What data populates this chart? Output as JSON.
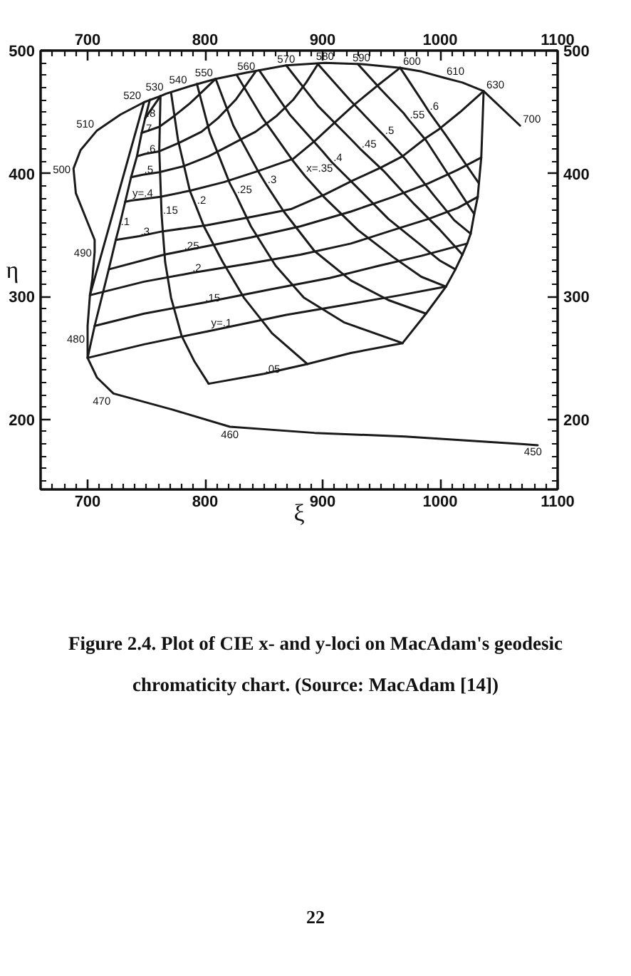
{
  "chart_data": {
    "type": "line",
    "title": "Figure 2.4. Plot of CIE x- and y-loci on MacAdam's geodesic chromaticity chart. (Source: MacAdam [14])",
    "xlabel": "ξ",
    "ylabel": "η",
    "xlim": [
      660,
      1100
    ],
    "ylim": [
      143,
      500
    ],
    "x2lim": [
      660,
      1100
    ],
    "y2lim": [
      143,
      500
    ],
    "xticks": [
      {
        "value": 670,
        "label": null
      },
      {
        "value": 680,
        "label": null
      },
      {
        "value": 690,
        "label": null
      },
      700,
      {
        "value": 710,
        "label": null
      },
      {
        "value": 720,
        "label": null
      },
      {
        "value": 730,
        "label": null
      },
      {
        "value": 740,
        "label": null
      },
      {
        "value": 750,
        "label": null
      },
      {
        "value": 760,
        "label": null
      },
      {
        "value": 770,
        "label": null
      },
      {
        "value": 780,
        "label": null
      },
      {
        "value": 790,
        "label": null
      },
      800,
      {
        "value": 810,
        "label": null
      },
      {
        "value": 820,
        "label": null
      },
      {
        "value": 830,
        "label": null
      },
      {
        "value": 840,
        "label": null
      },
      {
        "value": 850,
        "label": null
      },
      {
        "value": 860,
        "label": null
      },
      {
        "value": 870,
        "label": null
      },
      {
        "value": 880,
        "label": null
      },
      {
        "value": 890,
        "label": null
      },
      900,
      {
        "value": 910,
        "label": null
      },
      {
        "value": 920,
        "label": null
      },
      {
        "value": 930,
        "label": null
      },
      {
        "value": 940,
        "label": null
      },
      {
        "value": 950,
        "label": null
      },
      {
        "value": 960,
        "label": null
      },
      {
        "value": 970,
        "label": null
      },
      {
        "value": 980,
        "label": null
      },
      {
        "value": 990,
        "label": null
      },
      1000,
      {
        "value": 1010,
        "label": null
      },
      {
        "value": 1020,
        "label": null
      },
      {
        "value": 1030,
        "label": null
      },
      {
        "value": 1040,
        "label": null
      },
      {
        "value": 1050,
        "label": null
      },
      {
        "value": 1060,
        "label": null
      },
      {
        "value": 1070,
        "label": null
      },
      {
        "value": 1080,
        "label": null
      },
      {
        "value": 1090,
        "label": null
      },
      1100
    ],
    "x2ticks": [
      {
        "value": 670,
        "label": null
      },
      {
        "value": 680,
        "label": null
      },
      {
        "value": 690,
        "label": null
      },
      700,
      {
        "value": 710,
        "label": null
      },
      {
        "value": 720,
        "label": null
      },
      {
        "value": 730,
        "label": null
      },
      {
        "value": 740,
        "label": null
      },
      {
        "value": 750,
        "label": null
      },
      {
        "value": 760,
        "label": null
      },
      {
        "value": 770,
        "label": null
      },
      {
        "value": 780,
        "label": null
      },
      {
        "value": 790,
        "label": null
      },
      800,
      {
        "value": 810,
        "label": null
      },
      {
        "value": 820,
        "label": null
      },
      {
        "value": 830,
        "label": null
      },
      {
        "value": 840,
        "label": null
      },
      {
        "value": 850,
        "label": null
      },
      {
        "value": 860,
        "label": null
      },
      {
        "value": 870,
        "label": null
      },
      {
        "value": 880,
        "label": null
      },
      {
        "value": 890,
        "label": null
      },
      900,
      {
        "value": 910,
        "label": null
      },
      {
        "value": 920,
        "label": null
      },
      {
        "value": 930,
        "label": null
      },
      {
        "value": 940,
        "label": null
      },
      {
        "value": 950,
        "label": null
      },
      {
        "value": 960,
        "label": null
      },
      {
        "value": 970,
        "label": null
      },
      {
        "value": 980,
        "label": null
      },
      {
        "value": 990,
        "label": null
      },
      1000,
      {
        "value": 1010,
        "label": null
      },
      {
        "value": 1020,
        "label": null
      },
      {
        "value": 1030,
        "label": null
      },
      {
        "value": 1040,
        "label": null
      },
      {
        "value": 1050,
        "label": null
      },
      {
        "value": 1060,
        "label": null
      },
      {
        "value": 1070,
        "label": null
      },
      {
        "value": 1080,
        "label": null
      },
      {
        "value": 1090,
        "label": null
      },
      1100
    ],
    "yticks": [
      {
        "value": 150,
        "label": null
      },
      {
        "value": 160,
        "label": null
      },
      {
        "value": 170,
        "label": null
      },
      {
        "value": 180,
        "label": null
      },
      {
        "value": 190,
        "label": null
      },
      200,
      {
        "value": 210,
        "label": null
      },
      {
        "value": 220,
        "label": null
      },
      {
        "value": 230,
        "label": null
      },
      {
        "value": 240,
        "label": null
      },
      {
        "value": 250,
        "label": null
      },
      {
        "value": 260,
        "label": null
      },
      {
        "value": 270,
        "label": null
      },
      {
        "value": 280,
        "label": null
      },
      {
        "value": 290,
        "label": null
      },
      300,
      {
        "value": 310,
        "label": null
      },
      {
        "value": 320,
        "label": null
      },
      {
        "value": 330,
        "label": null
      },
      {
        "value": 340,
        "label": null
      },
      {
        "value": 350,
        "label": null
      },
      {
        "value": 360,
        "label": null
      },
      {
        "value": 370,
        "label": null
      },
      {
        "value": 380,
        "label": null
      },
      {
        "value": 390,
        "label": null
      },
      400,
      {
        "value": 410,
        "label": null
      },
      {
        "value": 420,
        "label": null
      },
      {
        "value": 430,
        "label": null
      },
      {
        "value": 440,
        "label": null
      },
      {
        "value": 450,
        "label": null
      },
      {
        "value": 460,
        "label": null
      },
      {
        "value": 470,
        "label": null
      },
      {
        "value": 480,
        "label": null
      },
      {
        "value": 490,
        "label": null
      },
      500
    ],
    "y2ticks": [
      {
        "value": 150,
        "label": null
      },
      {
        "value": 160,
        "label": null
      },
      {
        "value": 170,
        "label": null
      },
      {
        "value": 180,
        "label": null
      },
      {
        "value": 190,
        "label": null
      },
      200,
      {
        "value": 210,
        "label": null
      },
      {
        "value": 220,
        "label": null
      },
      {
        "value": 230,
        "label": null
      },
      {
        "value": 240,
        "label": null
      },
      {
        "value": 250,
        "label": null
      },
      {
        "value": 260,
        "label": null
      },
      {
        "value": 270,
        "label": null
      },
      {
        "value": 280,
        "label": null
      },
      {
        "value": 290,
        "label": null
      },
      300,
      {
        "value": 310,
        "label": null
      },
      {
        "value": 320,
        "label": null
      },
      {
        "value": 330,
        "label": null
      },
      {
        "value": 340,
        "label": null
      },
      {
        "value": 350,
        "label": null
      },
      {
        "value": 360,
        "label": null
      },
      {
        "value": 370,
        "label": null
      },
      {
        "value": 380,
        "label": null
      },
      {
        "value": 390,
        "label": null
      },
      400,
      {
        "value": 410,
        "label": null
      },
      {
        "value": 420,
        "label": null
      },
      {
        "value": 430,
        "label": null
      },
      {
        "value": 440,
        "label": null
      },
      {
        "value": 450,
        "label": null
      },
      {
        "value": 460,
        "label": null
      },
      {
        "value": 470,
        "label": null
      },
      {
        "value": 480,
        "label": null
      },
      {
        "value": 490,
        "label": null
      },
      500
    ],
    "series": [
      {
        "color": "#1a1a1a",
        "x": [
          1068,
          1037,
          1019,
          1003,
          984,
          966,
          933,
          902,
          869,
          835,
          809,
          787,
          767,
          762,
          748,
          728,
          708,
          694,
          688,
          690,
          698,
          706,
          706,
          704,
          702,
          700,
          700,
          700,
          708,
          722,
          772,
          821,
          893,
          970,
          1069,
          1083
        ],
        "values": [
          439,
          467,
          474,
          478,
          483,
          486,
          489,
          490,
          488,
          482,
          477,
          471,
          465,
          463,
          458,
          448,
          435,
          419,
          404,
          384,
          365,
          346,
          336,
          314,
          301,
          276,
          266,
          250,
          234,
          221,
          208,
          194,
          189,
          186,
          180,
          179
        ]
      },
      {
        "color": "#1a1a1a",
        "x": [
          748,
          702
        ],
        "values": [
          458,
          301
        ]
      },
      {
        "color": "#1a1a1a",
        "x": [
          753,
          749,
          746,
          742,
          737,
          732,
          727,
          724,
          718,
          706,
          700
        ],
        "values": [
          460,
          445,
          433,
          414,
          397,
          377,
          357,
          346,
          322,
          276,
          250
        ]
      },
      {
        "color": "#1a1a1a",
        "x": [
          1037,
          1036,
          1035,
          1033,
          1032,
          1029,
          1026,
          1023,
          1019,
          1013,
          1005,
          988,
          968
        ],
        "values": [
          467,
          439,
          413,
          392,
          381,
          367,
          351,
          343,
          334,
          322,
          308,
          286,
          262
        ]
      },
      {
        "color": "#1a1a1a",
        "x": [
          762,
          761,
          763,
          764,
          766,
          771,
          780,
          791,
          803
        ],
        "values": [
          463,
          419,
          366,
          353,
          328,
          299,
          268,
          247,
          229
        ]
      },
      {
        "color": "#1a1a1a",
        "x": [
          771,
          777,
          787,
          792,
          799,
          815,
          833,
          857,
          887
        ],
        "values": [
          466,
          427,
          386,
          374,
          357,
          328,
          299,
          270,
          245
        ]
      },
      {
        "color": "#1a1a1a",
        "x": [
          793,
          804,
          821,
          826,
          839,
          860,
          884,
          918,
          968
        ],
        "values": [
          473,
          433,
          392,
          383,
          357,
          325,
          299,
          279,
          262
        ]
      },
      {
        "color": "#1a1a1a",
        "x": [
          809,
          824,
          845,
          852,
          867,
          893,
          924,
          956,
          988
        ],
        "values": [
          477,
          439,
          402,
          391,
          369,
          337,
          313,
          297,
          286
        ]
      },
      {
        "color": "#1a1a1a",
        "x": [
          827,
          849,
          875,
          885,
          901,
          930,
          960,
          984,
          1005
        ],
        "values": [
          480,
          445,
          410,
          398,
          381,
          354,
          332,
          316,
          308
        ]
      },
      {
        "color": "#1a1a1a",
        "x": [
          846,
          872,
          900,
          908,
          927,
          956,
          982,
          1000,
          1013
        ],
        "values": [
          484,
          448,
          418,
          409,
          391,
          363,
          343,
          329,
          322
        ]
      },
      {
        "color": "#1a1a1a",
        "x": [
          869,
          896,
          925,
          932,
          952,
          978,
          1000,
          1019
        ],
        "values": [
          488,
          455,
          427,
          420,
          402,
          375,
          354,
          334
        ]
      },
      {
        "color": "#1a1a1a",
        "x": [
          896,
          923,
          947,
          952,
          971,
          994,
          1012,
          1026
        ],
        "values": [
          489,
          460,
          436,
          431,
          411,
          383,
          362,
          351
        ]
      },
      {
        "color": "#1a1a1a",
        "x": [
          930,
          949,
          969,
          973,
          988,
          1007,
          1029
        ],
        "values": [
          489,
          469,
          449,
          444,
          427,
          399,
          367
        ]
      },
      {
        "color": "#1a1a1a",
        "x": [
          966,
          986,
          990,
          1005,
          1033
        ],
        "values": [
          486,
          457,
          451,
          431,
          392
        ]
      },
      {
        "color": "#1a1a1a",
        "x": [
          749,
          762
        ],
        "values": [
          445,
          463
        ]
      },
      {
        "color": "#1a1a1a",
        "x": [
          746,
          761,
          774,
          787,
          797,
          809
        ],
        "values": [
          433,
          438,
          447,
          457,
          466,
          477
        ]
      },
      {
        "color": "#1a1a1a",
        "x": [
          742,
          749,
          761,
          778,
          797,
          811,
          826,
          843
        ],
        "values": [
          414,
          416,
          418,
          425,
          434,
          445,
          460,
          483
        ]
      },
      {
        "color": "#1a1a1a",
        "x": [
          737,
          747,
          761,
          782,
          803,
          823,
          843,
          861,
          875,
          886,
          896
        ],
        "values": [
          397,
          399,
          401,
          406,
          414,
          424,
          434,
          447,
          460,
          474,
          489
        ]
      },
      {
        "color": "#1a1a1a",
        "x": [
          732,
          737,
          762,
          787,
          816,
          845,
          875,
          894,
          912,
          927,
          946,
          966
        ],
        "values": [
          377,
          378,
          381,
          386,
          393,
          402,
          412,
          427,
          443,
          456,
          471,
          486
        ]
      },
      {
        "color": "#1a1a1a",
        "x": [
          724,
          744,
          764,
          802,
          841,
          873,
          902,
          925,
          950,
          968,
          988,
          999,
          1017,
          1037
        ],
        "values": [
          346,
          349,
          353,
          358,
          365,
          371,
          383,
          394,
          405,
          414,
          429,
          436,
          450,
          467
        ]
      },
      {
        "color": "#1a1a1a",
        "x": [
          718,
          765,
          781,
          797,
          839,
          881,
          924,
          960,
          990,
          1015,
          1035
        ],
        "values": [
          322,
          334,
          337,
          340,
          348,
          357,
          369,
          381,
          392,
          403,
          413
        ]
      },
      {
        "color": "#1a1a1a",
        "x": [
          702,
          748,
          788,
          839,
          881,
          924,
          960,
          990,
          1015,
          1032
        ],
        "values": [
          301,
          312,
          319,
          327,
          334,
          343,
          354,
          363,
          372,
          381
        ]
      },
      {
        "color": "#1a1a1a",
        "x": [
          706,
          748,
          799,
          857,
          906,
          948,
          984,
          1023
        ],
        "values": [
          276,
          286,
          295,
          306,
          315,
          325,
          333,
          343
        ]
      },
      {
        "color": "#1a1a1a",
        "x": [
          700,
          748,
          804,
          869,
          918,
          966,
          1005
        ],
        "values": [
          250,
          261,
          272,
          285,
          293,
          301,
          308
        ]
      },
      {
        "color": "#1a1a1a",
        "x": [
          803,
          850,
          887,
          924,
          968
        ],
        "values": [
          229,
          237,
          245,
          254,
          262
        ]
      }
    ],
    "annotations": [
      {
        "text": "700",
        "x": 1068,
        "y": 439
      },
      {
        "text": "630",
        "x": 1037,
        "y": 467
      },
      {
        "text": "610",
        "x": 1003,
        "y": 478
      },
      {
        "text": "600",
        "x": 966,
        "y": 486
      },
      {
        "text": "590",
        "x": 933,
        "y": 489
      },
      {
        "text": "580",
        "x": 902,
        "y": 490
      },
      {
        "text": "570",
        "x": 869,
        "y": 488
      },
      {
        "text": "560",
        "x": 835,
        "y": 482
      },
      {
        "text": "550",
        "x": 809,
        "y": 477
      },
      {
        "text": "540",
        "x": 787,
        "y": 471
      },
      {
        "text": "530",
        "x": 767,
        "y": 465
      },
      {
        "text": "520",
        "x": 748,
        "y": 458
      },
      {
        "text": "510",
        "x": 708,
        "y": 435
      },
      {
        "text": "500",
        "x": 688,
        "y": 404
      },
      {
        "text": "490",
        "x": 706,
        "y": 336
      },
      {
        "text": "480",
        "x": 700,
        "y": 266
      },
      {
        "text": "470",
        "x": 722,
        "y": 221
      },
      {
        "text": "460",
        "x": 821,
        "y": 194
      },
      {
        "text": "450",
        "x": 1069,
        "y": 180
      },
      {
        "text": ".1",
        "x": 727,
        "y": 357
      },
      {
        "text": ".15",
        "x": 763,
        "y": 366
      },
      {
        "text": ".2",
        "x": 792,
        "y": 374
      },
      {
        "text": ".25",
        "x": 826,
        "y": 383
      },
      {
        "text": ".3",
        "x": 852,
        "y": 391
      },
      {
        "text": "x=.35",
        "x": 885,
        "y": 398
      },
      {
        "text": ".4",
        "x": 908,
        "y": 409
      },
      {
        "text": ".45",
        "x": 932,
        "y": 420
      },
      {
        "text": ".5",
        "x": 952,
        "y": 431
      },
      {
        "text": ".55",
        "x": 973,
        "y": 444
      },
      {
        "text": ".6",
        "x": 990,
        "y": 451
      },
      {
        "text": ".8",
        "x": 749,
        "y": 445
      },
      {
        "text": ".7",
        "x": 746,
        "y": 433
      },
      {
        "text": ".6",
        "x": 749,
        "y": 416
      },
      {
        "text": ".5",
        "x": 747,
        "y": 399
      },
      {
        "text": "y=.4",
        "x": 737,
        "y": 378
      },
      {
        "text": ".3",
        "x": 744,
        "y": 349
      },
      {
        "text": ".25",
        "x": 781,
        "y": 337
      },
      {
        "text": ".2",
        "x": 788,
        "y": 319
      },
      {
        "text": ".15",
        "x": 799,
        "y": 295
      },
      {
        "text": "y=.1",
        "x": 804,
        "y": 272
      },
      {
        "text": ".05",
        "x": 850,
        "y": 237
      },
      "22"
    ]
  }
}
